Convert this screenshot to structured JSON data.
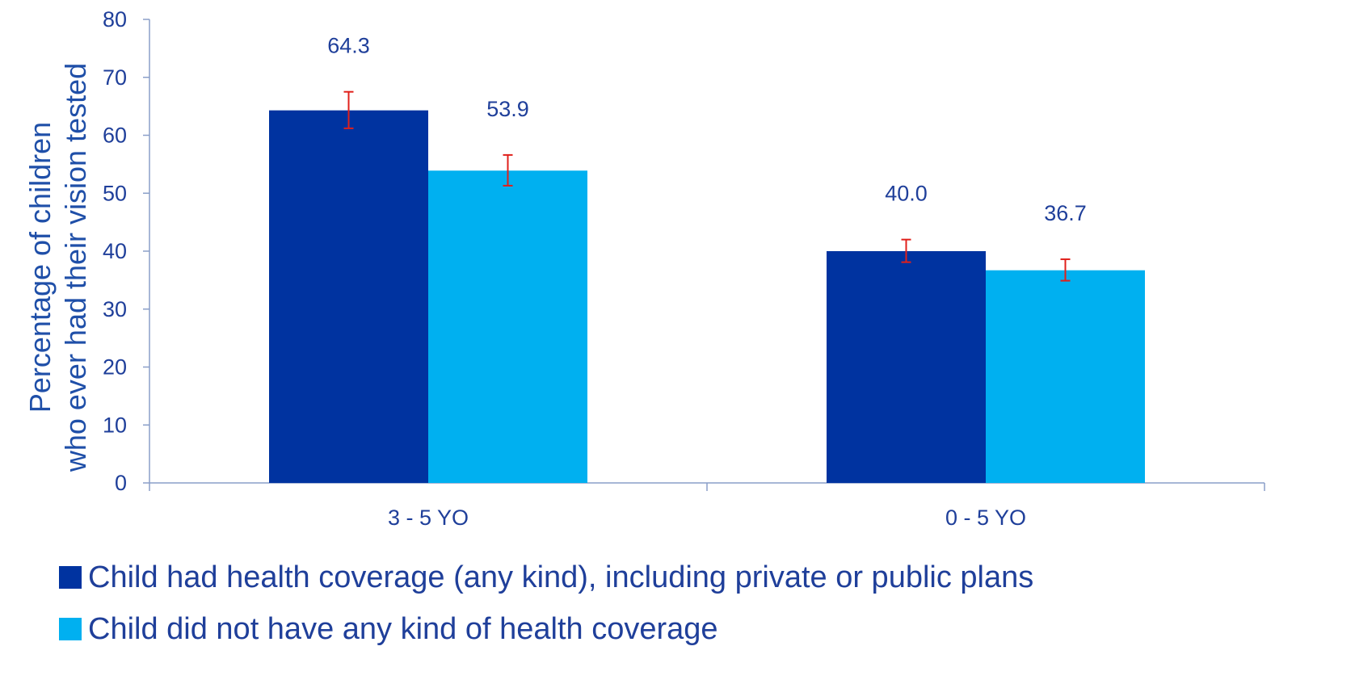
{
  "chart_data": {
    "type": "bar",
    "ylabel_lines": [
      "Percentage of children",
      "who ever had their vision tested"
    ],
    "ylim": [
      0,
      80
    ],
    "yticks": [
      0,
      10,
      20,
      30,
      40,
      50,
      60,
      70,
      80
    ],
    "categories": [
      "3 - 5 YO",
      "0 - 5 YO"
    ],
    "series": [
      {
        "name": "Child had health coverage (any kind), including  private or public plans",
        "color": "#0033a0",
        "values": [
          64.3,
          40.0
        ],
        "labels": [
          "64.3",
          "40.0"
        ],
        "error": [
          [
            61.2,
            67.5
          ],
          [
            38.1,
            42.0
          ]
        ]
      },
      {
        "name": "Child did not have any kind of health coverage",
        "color": "#00b0f0",
        "values": [
          53.9,
          36.7
        ],
        "labels": [
          "53.9",
          "36.7"
        ],
        "error": [
          [
            51.3,
            56.6
          ],
          [
            34.9,
            38.6
          ]
        ]
      }
    ],
    "error_bar_color": "#e0201b",
    "grid": false,
    "legend_position": "bottom-left"
  }
}
